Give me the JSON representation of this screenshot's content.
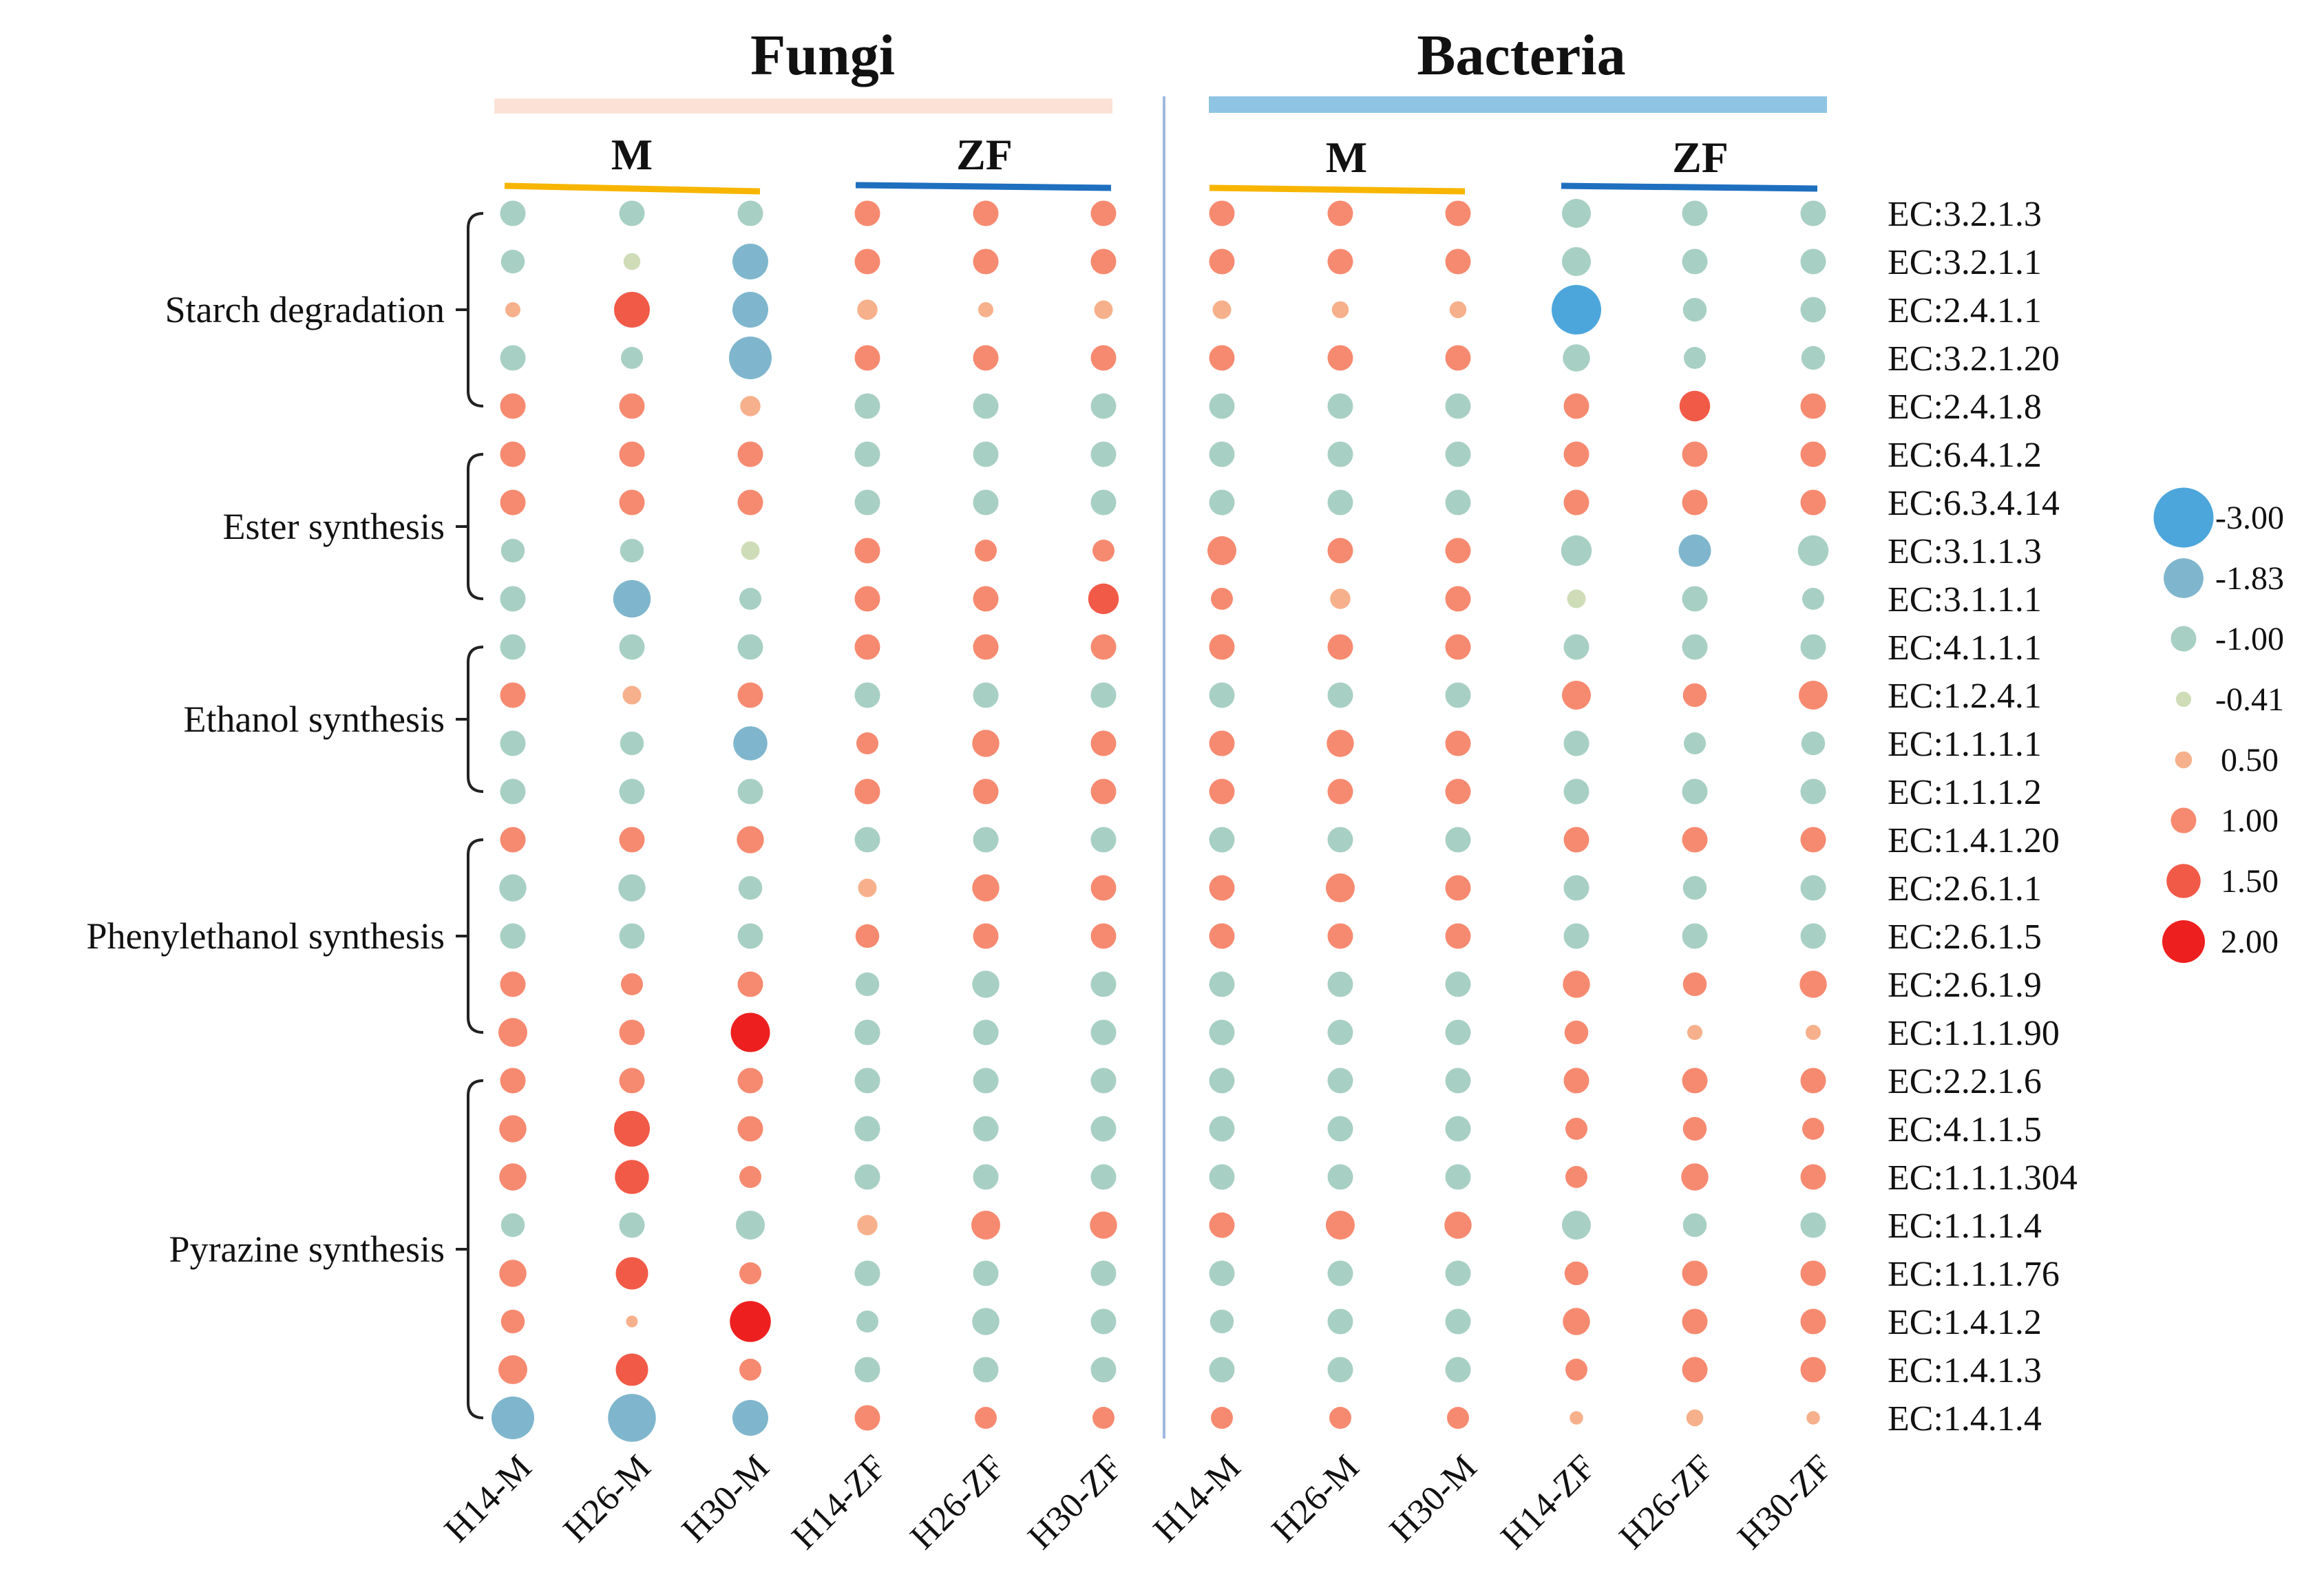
{
  "chart_data": {
    "type": "bubble-heatmap",
    "title_left": "Fungi",
    "title_right": "Bacteria",
    "subgroup_labels": [
      "M",
      "ZF",
      "M",
      "ZF"
    ],
    "columns": [
      "H14-M",
      "H26-M",
      "H30-M",
      "H14-ZF",
      "H26-ZF",
      "H30-ZF",
      "H14-M",
      "H26-M",
      "H30-M",
      "H14-ZF",
      "H26-ZF",
      "H30-ZF"
    ],
    "rows": [
      "EC:3.2.1.3",
      "EC:3.2.1.1",
      "EC:2.4.1.1",
      "EC:3.2.1.20",
      "EC:2.4.1.8",
      "EC:6.4.1.2",
      "EC:6.3.4.14",
      "EC:3.1.1.3",
      "EC:3.1.1.1",
      "EC:4.1.1.1",
      "EC:1.2.4.1",
      "EC:1.1.1.1",
      "EC:1.1.1.2",
      "EC:1.4.1.20",
      "EC:2.6.1.1",
      "EC:2.6.1.5",
      "EC:2.6.1.9",
      "EC:1.1.1.90",
      "EC:2.2.1.6",
      "EC:4.1.1.5",
      "EC:1.1.1.304",
      "EC:1.1.1.4",
      "EC:1.1.1.76",
      "EC:1.4.1.2",
      "EC:1.4.1.3",
      "EC:1.4.1.4"
    ],
    "groups": [
      {
        "label": "Starch degradation",
        "start": 0,
        "end": 4
      },
      {
        "label": "Ester synthesis",
        "start": 5,
        "end": 8
      },
      {
        "label": "Ethanol synthesis",
        "start": 9,
        "end": 12
      },
      {
        "label": "Phenylethanol synthesis",
        "start": 13,
        "end": 17
      },
      {
        "label": "Pyrazine synthesis",
        "start": 18,
        "end": 25
      }
    ],
    "legend": [
      {
        "label": "-3.00",
        "value": -3.0,
        "color": "#4da6db"
      },
      {
        "label": "-1.83",
        "value": -1.83,
        "color": "#7fb6cd"
      },
      {
        "label": "-1.00",
        "value": -1.0,
        "color": "#a8cfc4"
      },
      {
        "label": "-0.41",
        "value": -0.41,
        "color": "#cfdcb8"
      },
      {
        "label": "0.50",
        "value": 0.5,
        "color": "#f6b08b"
      },
      {
        "label": "1.00",
        "value": 1.0,
        "color": "#f68a70"
      },
      {
        "label": "1.50",
        "value": 1.5,
        "color": "#f25a48"
      },
      {
        "label": "2.00",
        "value": 2.0,
        "color": "#ee1f1f"
      }
    ],
    "values": [
      [
        -1.0,
        -1.0,
        -1.0,
        1.0,
        1.0,
        1.0,
        1.0,
        1.0,
        1.0,
        -1.2,
        -1.0,
        -1.0
      ],
      [
        -0.9,
        -0.5,
        -1.6,
        1.0,
        1.0,
        1.0,
        1.0,
        1.0,
        1.0,
        -1.2,
        -1.0,
        -1.0
      ],
      [
        0.4,
        1.6,
        -1.6,
        0.7,
        0.4,
        0.6,
        0.6,
        0.5,
        0.5,
        -2.4,
        -0.9,
        -1.0
      ],
      [
        -1.0,
        -0.8,
        -2.0,
        1.0,
        1.0,
        1.0,
        1.0,
        1.0,
        1.0,
        -1.1,
        -0.8,
        -0.9
      ],
      [
        1.0,
        1.0,
        0.7,
        -1.0,
        -1.0,
        -1.0,
        -1.0,
        -1.0,
        -1.0,
        1.0,
        1.3,
        1.0
      ],
      [
        1.0,
        1.0,
        1.0,
        -1.0,
        -1.0,
        -1.0,
        -1.0,
        -1.0,
        -1.0,
        1.0,
        1.0,
        1.0
      ],
      [
        1.0,
        1.0,
        1.0,
        -1.0,
        -1.0,
        -1.0,
        -1.0,
        -1.0,
        -1.0,
        1.0,
        1.0,
        1.0
      ],
      [
        -0.9,
        -0.9,
        -0.6,
        1.0,
        0.8,
        0.8,
        1.2,
        1.0,
        1.0,
        -1.3,
        -1.4,
        -1.3
      ],
      [
        -1.0,
        -1.7,
        -0.8,
        1.0,
        1.0,
        1.3,
        0.8,
        0.7,
        1.0,
        -0.6,
        -1.0,
        -0.8
      ],
      [
        -1.0,
        -1.0,
        -1.0,
        1.0,
        1.0,
        1.0,
        1.0,
        1.0,
        1.0,
        -1.0,
        -1.0,
        -1.0
      ],
      [
        1.0,
        0.6,
        1.0,
        -1.0,
        -1.0,
        -1.0,
        -1.0,
        -1.0,
        -1.0,
        1.2,
        0.9,
        1.2
      ],
      [
        -1.0,
        -0.9,
        -1.5,
        0.8,
        1.1,
        1.0,
        1.0,
        1.1,
        1.0,
        -1.0,
        -0.8,
        -0.9
      ],
      [
        -1.0,
        -1.0,
        -1.0,
        1.0,
        1.0,
        1.0,
        1.0,
        1.0,
        1.0,
        -1.0,
        -1.0,
        -1.0
      ],
      [
        1.0,
        1.0,
        1.1,
        -1.0,
        -1.0,
        -1.0,
        -1.0,
        -1.0,
        -1.0,
        1.0,
        1.0,
        1.0
      ],
      [
        -1.1,
        -1.1,
        -0.9,
        0.6,
        1.1,
        1.0,
        1.0,
        1.2,
        1.0,
        -1.0,
        -0.9,
        -1.0
      ],
      [
        -1.0,
        -1.0,
        -1.0,
        0.9,
        1.0,
        1.0,
        1.0,
        1.0,
        1.0,
        -1.0,
        -1.0,
        -1.0
      ],
      [
        1.0,
        0.8,
        1.0,
        -0.9,
        -1.1,
        -1.0,
        -1.0,
        -1.0,
        -1.0,
        1.1,
        0.9,
        1.1
      ],
      [
        1.2,
        1.0,
        1.8,
        -1.0,
        -1.0,
        -1.0,
        -1.0,
        -1.0,
        -1.0,
        0.9,
        0.4,
        0.4
      ],
      [
        1.0,
        1.0,
        1.0,
        -1.0,
        -1.0,
        -1.0,
        -1.0,
        -1.0,
        -1.0,
        1.0,
        1.0,
        1.0
      ],
      [
        1.1,
        1.6,
        1.0,
        -1.0,
        -1.0,
        -1.0,
        -1.0,
        -1.0,
        -1.0,
        0.8,
        0.9,
        0.8
      ],
      [
        1.1,
        1.5,
        0.8,
        -1.0,
        -1.0,
        -1.0,
        -1.0,
        -1.0,
        -1.0,
        0.8,
        1.1,
        1.0
      ],
      [
        -0.9,
        -1.0,
        -1.2,
        0.7,
        1.2,
        1.1,
        1.0,
        1.2,
        1.1,
        -1.2,
        -0.9,
        -1.0
      ],
      [
        1.1,
        1.4,
        0.8,
        -1.0,
        -1.0,
        -1.0,
        -1.0,
        -1.0,
        -1.0,
        0.9,
        1.0,
        1.0
      ],
      [
        0.9,
        0.2,
        1.9,
        -0.8,
        -1.1,
        -1.0,
        -0.9,
        -1.0,
        -1.0,
        1.1,
        1.0,
        1.0
      ],
      [
        1.2,
        1.4,
        0.8,
        -1.0,
        -1.0,
        -1.0,
        -1.0,
        -1.0,
        -1.0,
        0.8,
        1.0,
        1.0
      ],
      [
        -2.0,
        -2.3,
        -1.6,
        1.0,
        0.8,
        0.8,
        0.8,
        0.8,
        0.8,
        0.3,
        0.5,
        0.3
      ]
    ]
  }
}
